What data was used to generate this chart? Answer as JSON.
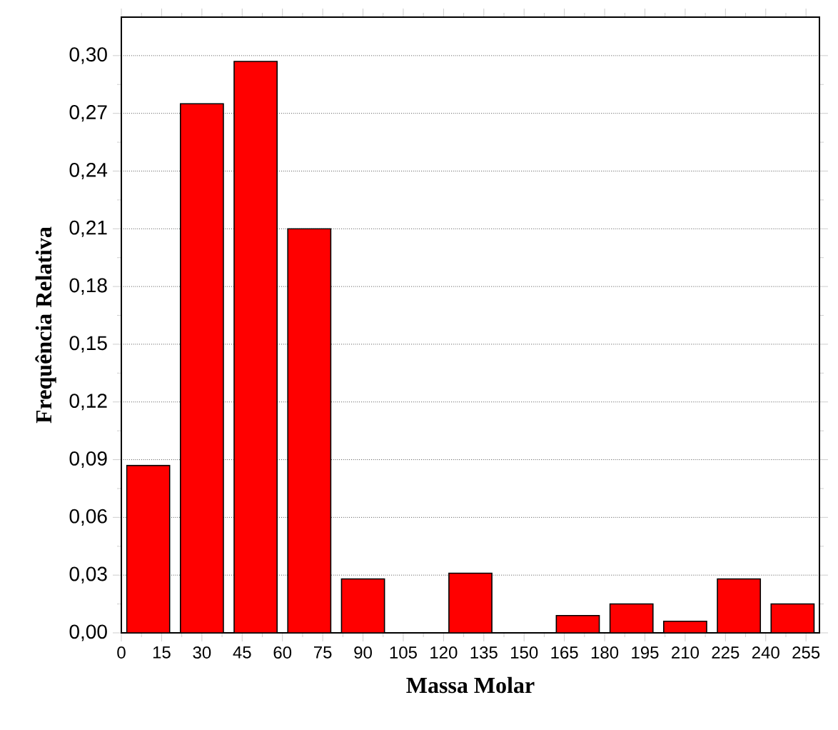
{
  "chart_data": {
    "type": "histogram",
    "xlabel": "Massa Molar",
    "ylabel": "Frequência Relativa",
    "bins": [
      0,
      20,
      40,
      60,
      80,
      100,
      120,
      140,
      160,
      180,
      200,
      220,
      240,
      260
    ],
    "values": [
      0.087,
      0.275,
      0.297,
      0.21,
      0.028,
      0,
      0.031,
      0,
      0.009,
      0.015,
      0.006,
      0.028,
      0.015
    ],
    "color": "#ff0000",
    "xlim": [
      0,
      260
    ],
    "xticks": [
      0,
      15,
      30,
      45,
      60,
      75,
      90,
      105,
      120,
      135,
      150,
      165,
      180,
      195,
      210,
      225,
      240,
      255
    ],
    "ylim": [
      0,
      0.32
    ],
    "yticks": [
      {
        "value": 0,
        "label": "0,00"
      },
      {
        "value": 0.03,
        "label": "0,03"
      },
      {
        "value": 0.06,
        "label": "0,06"
      },
      {
        "value": 0.09,
        "label": "0,09"
      },
      {
        "value": 0.12,
        "label": "0,12"
      },
      {
        "value": 0.15,
        "label": "0,15"
      },
      {
        "value": 0.18,
        "label": "0,18"
      },
      {
        "value": 0.21,
        "label": "0,21"
      },
      {
        "value": 0.24,
        "label": "0,24"
      },
      {
        "value": 0.27,
        "label": "0,27"
      },
      {
        "value": 0.3,
        "label": "0,30"
      }
    ],
    "grid": "y"
  }
}
